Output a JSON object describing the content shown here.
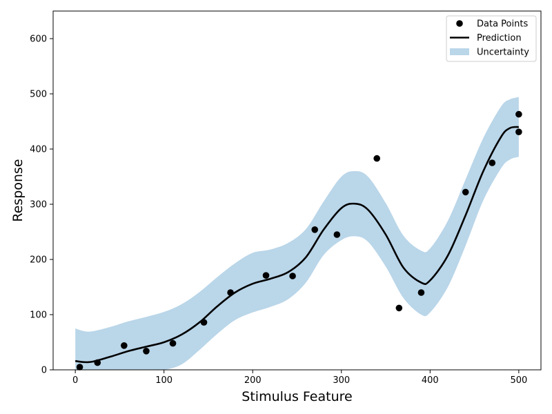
{
  "chart_data": {
    "type": "scatter",
    "xlabel": "Stimulus Feature",
    "ylabel": "Response",
    "xlim": [
      -25,
      525
    ],
    "ylim": [
      0,
      650
    ],
    "xticks": [
      "0",
      "100",
      "200",
      "300",
      "400",
      "500"
    ],
    "yticks": [
      "0",
      "100",
      "200",
      "300",
      "400",
      "500",
      "600"
    ],
    "legend_position": "top-right",
    "grid": false,
    "colors": {
      "points": "#000000",
      "prediction": "#000000",
      "uncertainty": "#bad6e9"
    },
    "series": [
      {
        "name": "Data Points",
        "kind": "scatter",
        "x": [
          5,
          25,
          55,
          80,
          110,
          145,
          175,
          215,
          245,
          270,
          295,
          340,
          365,
          390,
          440,
          470,
          500,
          500
        ],
        "y": [
          5,
          13,
          44,
          34,
          48,
          86,
          140,
          171,
          170,
          254,
          245,
          383,
          112,
          140,
          322,
          375,
          463,
          431
        ]
      },
      {
        "name": "Prediction",
        "kind": "line",
        "x": [
          0,
          10,
          20,
          40,
          60,
          80,
          100,
          120,
          140,
          160,
          180,
          200,
          220,
          240,
          260,
          280,
          300,
          315,
          330,
          350,
          370,
          390,
          400,
          420,
          440,
          460,
          480,
          490,
          500
        ],
        "y": [
          16,
          14,
          15,
          24,
          34,
          42,
          50,
          64,
          86,
          115,
          140,
          156,
          165,
          177,
          204,
          254,
          293,
          301,
          290,
          245,
          185,
          158,
          162,
          207,
          280,
          360,
          422,
          438,
          440
        ]
      },
      {
        "name": "Uncertainty",
        "kind": "band",
        "x": [
          0,
          10,
          20,
          40,
          60,
          80,
          100,
          120,
          140,
          160,
          180,
          200,
          220,
          240,
          260,
          280,
          300,
          315,
          330,
          350,
          370,
          390,
          400,
          420,
          440,
          460,
          480,
          490,
          500
        ],
        "lower": [
          0,
          0,
          0,
          0,
          0,
          0,
          0,
          10,
          36,
          65,
          90,
          104,
          114,
          128,
          158,
          208,
          235,
          242,
          232,
          187,
          130,
          100,
          104,
          150,
          225,
          307,
          365,
          381,
          386
        ],
        "upper": [
          75,
          70,
          70,
          78,
          88,
          96,
          105,
          119,
          141,
          168,
          193,
          212,
          218,
          230,
          255,
          305,
          350,
          360,
          350,
          302,
          243,
          216,
          220,
          270,
          345,
          420,
          477,
          490,
          494
        ]
      }
    ]
  }
}
